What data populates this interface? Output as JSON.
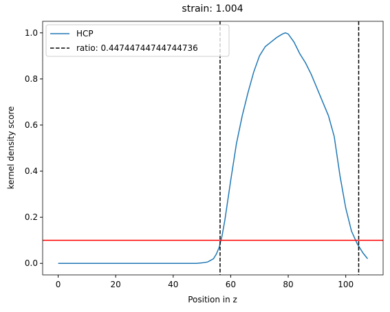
{
  "chart_data": {
    "type": "line",
    "title": "strain: 1.004",
    "xlabel": "Position in z",
    "ylabel": "kernel density score",
    "xlim": [
      -5.4,
      113
    ],
    "ylim": [
      -0.05,
      1.05
    ],
    "xticks": [
      0,
      20,
      40,
      60,
      80,
      100
    ],
    "yticks": [
      {
        "value": 0,
        "label": "0.0"
      },
      {
        "value": 0.2,
        "label": "0.2"
      },
      {
        "value": 0.4,
        "label": "0.4"
      },
      {
        "value": 0.6,
        "label": "0.6"
      },
      {
        "value": 0.8,
        "label": "0.8"
      },
      {
        "value": 1,
        "label": "1.0"
      }
    ],
    "legend": "upper left",
    "series": [
      {
        "name": "HCP",
        "color": "#1f77b4",
        "x": [
          0,
          10,
          20,
          30,
          40,
          48,
          50,
          52,
          54,
          55,
          56,
          57,
          58,
          60,
          62,
          64,
          66,
          68,
          70,
          72,
          74,
          76,
          78,
          79,
          80,
          82,
          84,
          86,
          88,
          90,
          92,
          94,
          96,
          98,
          100,
          102,
          104,
          106,
          107.6
        ],
        "values": [
          0,
          0,
          0,
          0,
          0,
          0,
          0.002,
          0.006,
          0.02,
          0.04,
          0.07,
          0.12,
          0.19,
          0.36,
          0.52,
          0.64,
          0.74,
          0.83,
          0.9,
          0.94,
          0.96,
          0.98,
          0.995,
          1.0,
          0.995,
          0.96,
          0.91,
          0.87,
          0.82,
          0.76,
          0.7,
          0.64,
          0.55,
          0.38,
          0.24,
          0.14,
          0.085,
          0.045,
          0.02
        ]
      }
    ],
    "vlines": {
      "name": "ratio: 0.44744744744744736",
      "color": "#000000",
      "x": [
        56.3,
        104.5
      ]
    },
    "hline": {
      "color": "#ff0000",
      "y": 0.1
    }
  }
}
